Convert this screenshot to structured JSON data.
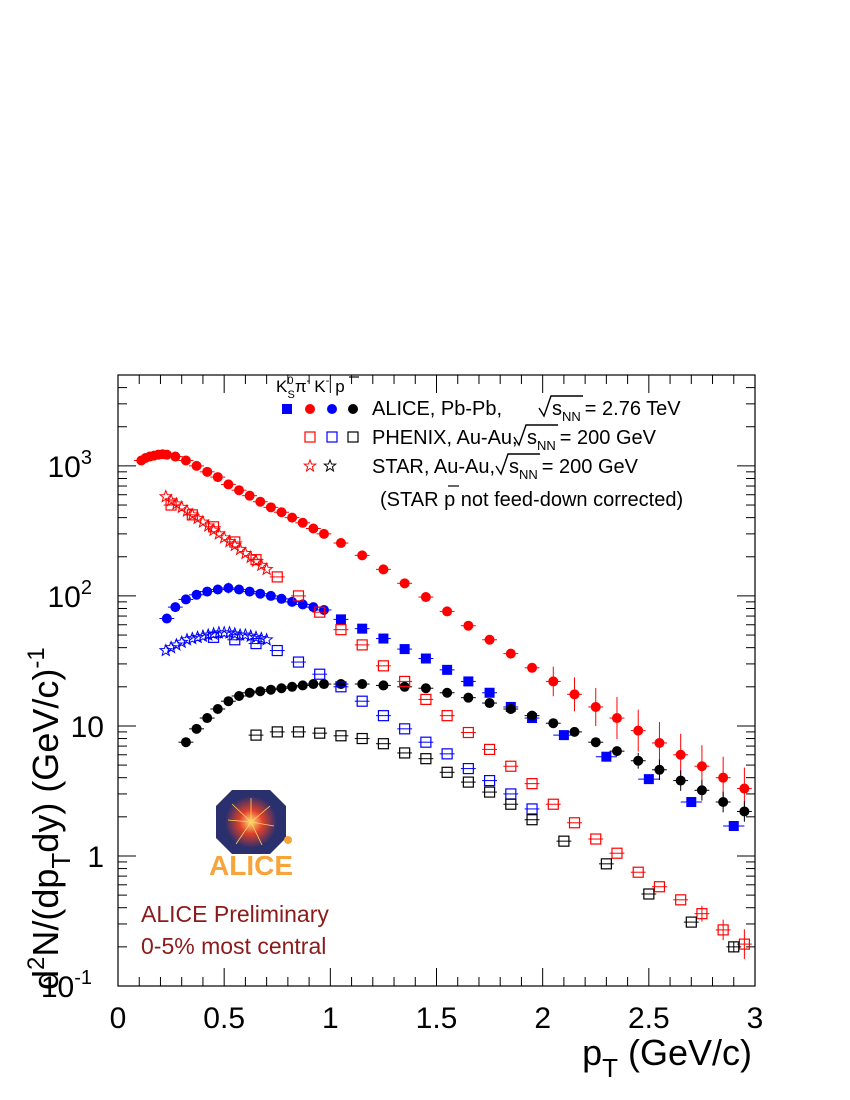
{
  "chart_data": {
    "type": "scatter",
    "y_scale": "log",
    "xlim": [
      0,
      3
    ],
    "ylim": [
      0.1,
      5000
    ],
    "x_ticks": [
      "0",
      "0.5",
      "1",
      "1.5",
      "2",
      "2.5",
      "3"
    ],
    "y_ticks": [
      {
        "value": 1000,
        "base": "10",
        "exp": "3"
      },
      {
        "value": 100,
        "base": "10",
        "exp": "2"
      },
      {
        "value": 10,
        "base": "10",
        "exp": ""
      },
      {
        "value": 1,
        "base": "1",
        "exp": ""
      },
      {
        "value": 0.1,
        "base": "10",
        "exp": "-1"
      }
    ],
    "xlabel": {
      "main": "p",
      "sub": "T",
      "rest": " (GeV/c)"
    },
    "ylabel": {
      "d": "d",
      "sup2": "2",
      "n": "N/(dp",
      "subT": "T",
      "dy": "dy)  (GeV/c)",
      "supm1": "-1"
    },
    "legend": {
      "species_header": {
        "k": "K",
        "ksup": "0",
        "ksub": "S",
        "pi": "π",
        "pisup": "-",
        "kminus": "K",
        "kminussup": "-",
        "pbar": "p"
      },
      "rows": [
        {
          "name": "ALICE, Pb-Pb,",
          "energy": "= 2.76 TeV"
        },
        {
          "name": "PHENIX, Au-Au,",
          "energy": "= 200 GeV"
        },
        {
          "name": "STAR, Au-Au,",
          "energy": "= 200 GeV"
        }
      ],
      "sqrt_s": "s",
      "sqrt_sub": "NN",
      "note_pre": "(STAR ",
      "note_p": "p",
      "note_post": " not feed-down corrected)"
    },
    "annotations": {
      "line1": "ALICE Preliminary",
      "line2": "0-5% most central"
    },
    "logo_text": "ALICE",
    "colors": {
      "red": "#ff0000",
      "blue": "#0000ff",
      "black": "#000000",
      "logo_orange": "#f7a43a",
      "logo_navy": "#2a2f6e",
      "annot": "#8b1a1a"
    },
    "series": [
      {
        "name": "ALICE pi-",
        "color": "#ff0000",
        "marker": "circle",
        "x": [
          0.11,
          0.13,
          0.15,
          0.17,
          0.19,
          0.21,
          0.23,
          0.27,
          0.32,
          0.37,
          0.42,
          0.47,
          0.52,
          0.57,
          0.62,
          0.67,
          0.72,
          0.77,
          0.82,
          0.87,
          0.92,
          0.97,
          1.05,
          1.15,
          1.25,
          1.35,
          1.45,
          1.55,
          1.65,
          1.75,
          1.85,
          1.95,
          2.05,
          2.15,
          2.25,
          2.35,
          2.45,
          2.55,
          2.65,
          2.75,
          2.85,
          2.95
        ],
        "y": [
          1100,
          1150,
          1180,
          1200,
          1220,
          1230,
          1220,
          1180,
          1100,
          1000,
          900,
          820,
          720,
          650,
          590,
          530,
          480,
          440,
          400,
          365,
          330,
          300,
          255,
          205,
          160,
          125,
          98,
          76,
          59,
          46,
          36,
          28,
          22,
          17.5,
          14,
          11.5,
          9.2,
          7.4,
          6.0,
          4.9,
          4.0,
          3.3
        ],
        "err": [
          0,
          0,
          0,
          0,
          0,
          0,
          0,
          0,
          0,
          0,
          0,
          0,
          0,
          0,
          0,
          0,
          0,
          0,
          0,
          0,
          0,
          0,
          0,
          0,
          0,
          0,
          0,
          0,
          0,
          0,
          0,
          0,
          0.3,
          0.35,
          0.4,
          0.45,
          0.45,
          0.45,
          0.45,
          0.45,
          0.45,
          0.45
        ]
      },
      {
        "name": "ALICE K-",
        "color": "#0000ff",
        "marker": "circle",
        "x": [
          0.23,
          0.27,
          0.32,
          0.37,
          0.42,
          0.47,
          0.52,
          0.57,
          0.62,
          0.67,
          0.72,
          0.77,
          0.82,
          0.87,
          0.92,
          0.97
        ],
        "y": [
          67,
          82,
          94,
          102,
          108,
          112,
          115,
          112,
          108,
          104,
          100,
          95,
          90,
          86,
          82,
          78
        ],
        "err": [
          0,
          0,
          0,
          0,
          0,
          0,
          0.1,
          0,
          0,
          0,
          0,
          0,
          0,
          0,
          0,
          0
        ]
      },
      {
        "name": "ALICE Ks0",
        "color": "#0000ff",
        "marker": "square",
        "x": [
          1.05,
          1.15,
          1.25,
          1.35,
          1.45,
          1.55,
          1.65,
          1.75,
          1.85,
          1.95,
          2.1,
          2.3,
          2.5,
          2.7,
          2.9
        ],
        "y": [
          66,
          56,
          47,
          39,
          33,
          27,
          22,
          18,
          14,
          11.5,
          8.5,
          5.8,
          3.9,
          2.6,
          1.7
        ],
        "err": [
          0,
          0,
          0,
          0,
          0,
          0,
          0,
          0,
          0,
          0,
          0,
          0,
          0,
          0,
          0
        ],
        "xerr": [
          0,
          0,
          0,
          0,
          0,
          0,
          0,
          0,
          0,
          0,
          0.1,
          0.1,
          0.1,
          0.1,
          0.1
        ]
      },
      {
        "name": "ALICE pbar",
        "color": "#000000",
        "marker": "circle",
        "x": [
          0.32,
          0.37,
          0.42,
          0.47,
          0.52,
          0.57,
          0.62,
          0.67,
          0.72,
          0.77,
          0.82,
          0.87,
          0.92,
          0.97,
          1.05,
          1.15,
          1.25,
          1.35,
          1.45,
          1.55,
          1.65,
          1.75,
          1.85,
          1.95,
          2.05,
          2.15,
          2.25,
          2.35,
          2.45,
          2.55,
          2.65,
          2.75,
          2.85,
          2.95
        ],
        "y": [
          7.5,
          9.5,
          11.5,
          13.5,
          15.5,
          17,
          18,
          18.5,
          19,
          19.5,
          20,
          20.5,
          21,
          21,
          21,
          21,
          20.5,
          20,
          19.5,
          18,
          16.5,
          15,
          13.5,
          12,
          10.5,
          9,
          7.5,
          6.4,
          5.4,
          4.6,
          3.8,
          3.2,
          2.6,
          2.2
        ],
        "err": [
          0,
          0,
          0,
          0,
          0,
          0,
          0,
          0,
          0,
          0,
          0,
          0,
          0,
          0,
          0,
          0,
          0,
          0,
          0,
          0,
          0,
          0,
          0,
          0,
          0,
          0,
          0,
          0,
          0.15,
          0.2,
          0.2,
          0.2,
          0.2,
          0.2
        ]
      },
      {
        "name": "PHENIX pi-",
        "color": "#ff0000",
        "marker": "open-square",
        "x": [
          0.25,
          0.35,
          0.45,
          0.55,
          0.65,
          0.75,
          0.85,
          0.95,
          1.05,
          1.15,
          1.25,
          1.35,
          1.45,
          1.55,
          1.65,
          1.75,
          1.85,
          1.95,
          2.05,
          2.15,
          2.25,
          2.35,
          2.45,
          2.55,
          2.65,
          2.75,
          2.85,
          2.95
        ],
        "y": [
          500,
          420,
          340,
          260,
          190,
          140,
          100,
          75,
          55,
          42,
          29,
          22,
          16,
          12,
          8.9,
          6.6,
          4.9,
          3.6,
          2.5,
          1.8,
          1.35,
          1.05,
          0.75,
          0.58,
          0.46,
          0.36,
          0.27,
          0.21
        ],
        "err": [
          0,
          0,
          0,
          0,
          0,
          0,
          0,
          0,
          0,
          0,
          0,
          0,
          0,
          0,
          0,
          0,
          0,
          0,
          0,
          0,
          0,
          0,
          0,
          0,
          0,
          0.15,
          0.2,
          0.3
        ]
      },
      {
        "name": "PHENIX K-",
        "color": "#0000ff",
        "marker": "open-square",
        "x": [
          0.45,
          0.55,
          0.65,
          0.75,
          0.85,
          0.95,
          1.05,
          1.15,
          1.25,
          1.35,
          1.45,
          1.55,
          1.65,
          1.75,
          1.85,
          1.95
        ],
        "y": [
          48,
          46,
          43,
          38,
          31,
          25,
          20,
          15.5,
          12,
          9.5,
          7.5,
          6.1,
          4.7,
          3.8,
          3.0,
          2.3
        ],
        "err": [
          0,
          0,
          0,
          0,
          0,
          0,
          0,
          0,
          0,
          0,
          0,
          0,
          0,
          0,
          0,
          0
        ]
      },
      {
        "name": "PHENIX pbar",
        "color": "#000000",
        "marker": "open-square",
        "x": [
          0.65,
          0.75,
          0.85,
          0.95,
          1.05,
          1.15,
          1.25,
          1.35,
          1.45,
          1.55,
          1.65,
          1.75,
          1.85,
          1.95,
          2.1,
          2.3,
          2.5,
          2.7,
          2.9
        ],
        "y": [
          8.5,
          9,
          9,
          8.8,
          8.4,
          8.0,
          7.3,
          6.2,
          5.6,
          4.4,
          3.7,
          3.1,
          2.5,
          1.9,
          1.3,
          0.87,
          0.51,
          0.31,
          0.2
        ],
        "err": [
          0,
          0,
          0,
          0,
          0,
          0,
          0,
          0,
          0,
          0,
          0,
          0,
          0,
          0,
          0,
          0,
          0,
          0,
          0.1
        ]
      },
      {
        "name": "STAR pi-",
        "color": "#ff0000",
        "marker": "open-star",
        "x": [
          0.225,
          0.25,
          0.275,
          0.3,
          0.325,
          0.35,
          0.375,
          0.4,
          0.425,
          0.45,
          0.475,
          0.5,
          0.525,
          0.55,
          0.575,
          0.6,
          0.625,
          0.65,
          0.675,
          0.7
        ],
        "y": [
          580,
          540,
          510,
          480,
          450,
          420,
          395,
          370,
          345,
          320,
          300,
          280,
          262,
          245,
          228,
          212,
          198,
          185,
          172,
          160
        ],
        "err": [
          0,
          0,
          0,
          0,
          0,
          0,
          0,
          0,
          0,
          0,
          0,
          0,
          0,
          0,
          0,
          0,
          0,
          0,
          0,
          0
        ]
      },
      {
        "name": "STAR K-",
        "color": "#0000ff",
        "marker": "open-star",
        "x": [
          0.225,
          0.25,
          0.275,
          0.3,
          0.325,
          0.35,
          0.375,
          0.4,
          0.425,
          0.45,
          0.475,
          0.5,
          0.525,
          0.55,
          0.575,
          0.6,
          0.625,
          0.65,
          0.675,
          0.7
        ],
        "y": [
          38,
          40,
          42,
          44,
          46,
          47,
          48,
          49,
          50,
          51,
          52,
          52,
          52,
          51,
          50,
          50,
          49,
          48,
          47,
          46
        ],
        "err": [
          0,
          0,
          0,
          0,
          0,
          0,
          0,
          0,
          0,
          0,
          0,
          0,
          0,
          0,
          0,
          0,
          0,
          0,
          0,
          0
        ]
      }
    ]
  }
}
